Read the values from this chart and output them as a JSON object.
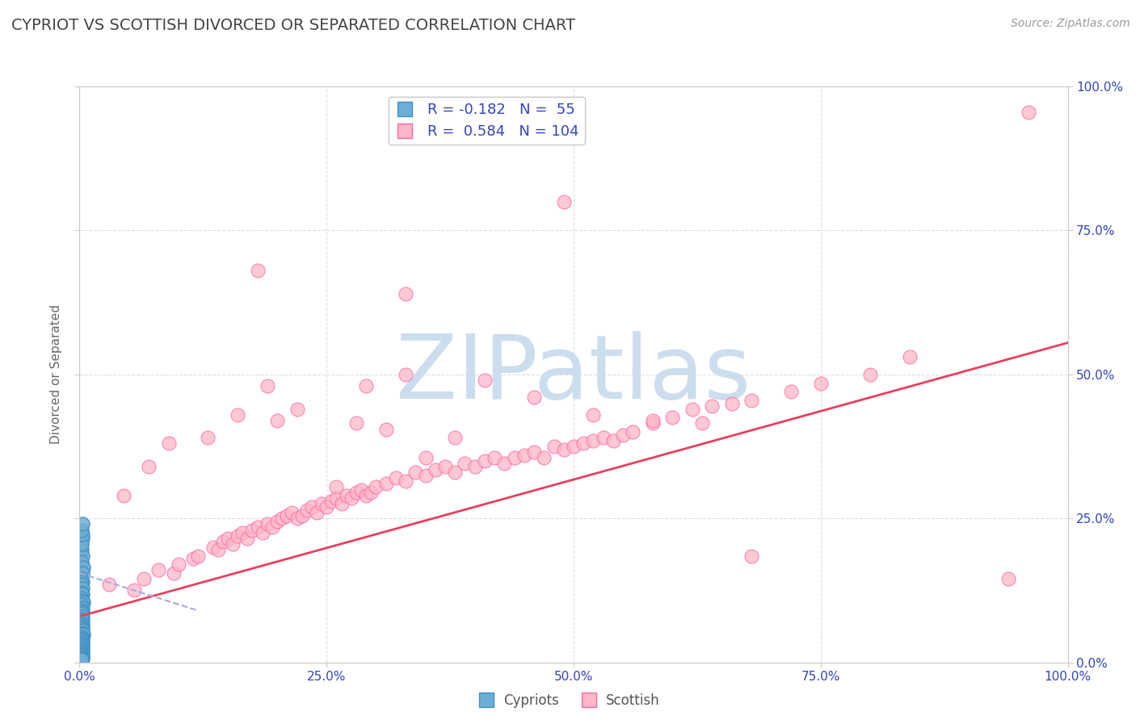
{
  "title": "CYPRIOT VS SCOTTISH DIVORCED OR SEPARATED CORRELATION CHART",
  "source_text": "Source: ZipAtlas.com",
  "ylabel": "Divorced or Separated",
  "xlim": [
    0,
    1.0
  ],
  "ylim": [
    0,
    1.0
  ],
  "xticks": [
    0.0,
    0.25,
    0.5,
    0.75,
    1.0
  ],
  "yticks": [
    0.0,
    0.25,
    0.5,
    0.75,
    1.0
  ],
  "xtick_labels": [
    "0.0%",
    "25.0%",
    "50.0%",
    "75.0%",
    "100.0%"
  ],
  "ytick_labels": [
    "0.0%",
    "25.0%",
    "50.0%",
    "75.0%",
    "100.0%"
  ],
  "legend_R1": "-0.182",
  "legend_N1": "55",
  "legend_R2": "0.584",
  "legend_N2": "104",
  "cypriot_color": "#6baed6",
  "scottish_color": "#ffb6c8",
  "cypriot_edge": "#4292c6",
  "scottish_edge": "#f768a1",
  "trend_scottish_color": "#e84060",
  "trend_cypriot_color": "#aaaadd",
  "watermark": "ZIPatlas",
  "watermark_color": "#ccdded",
  "background_color": "#ffffff",
  "grid_color": "#dddddd",
  "title_color": "#444444",
  "axis_label_color": "#666666",
  "tick_label_color": "#3344bb",
  "scottish_trend_x0": 0.0,
  "scottish_trend_y0": 0.08,
  "scottish_trend_x1": 1.0,
  "scottish_trend_y1": 0.555,
  "cypriot_trend_x0": 0.0,
  "cypriot_trend_y0": 0.155,
  "cypriot_trend_x1": 0.12,
  "cypriot_trend_y1": 0.09,
  "scottish_scatter_x": [
    0.03,
    0.055,
    0.065,
    0.08,
    0.095,
    0.1,
    0.115,
    0.12,
    0.135,
    0.14,
    0.145,
    0.15,
    0.155,
    0.16,
    0.165,
    0.17,
    0.175,
    0.18,
    0.185,
    0.19,
    0.195,
    0.2,
    0.205,
    0.21,
    0.215,
    0.22,
    0.225,
    0.23,
    0.235,
    0.24,
    0.245,
    0.25,
    0.255,
    0.26,
    0.265,
    0.27,
    0.275,
    0.28,
    0.285,
    0.29,
    0.295,
    0.3,
    0.31,
    0.32,
    0.33,
    0.34,
    0.35,
    0.36,
    0.37,
    0.38,
    0.39,
    0.4,
    0.41,
    0.42,
    0.43,
    0.44,
    0.45,
    0.46,
    0.47,
    0.48,
    0.49,
    0.5,
    0.51,
    0.52,
    0.53,
    0.54,
    0.55,
    0.56,
    0.58,
    0.6,
    0.62,
    0.64,
    0.66,
    0.68,
    0.72,
    0.75,
    0.8,
    0.84,
    0.26,
    0.35,
    0.38,
    0.2,
    0.22,
    0.28,
    0.31,
    0.16,
    0.13,
    0.09,
    0.07,
    0.045,
    0.19,
    0.29,
    0.33,
    0.41,
    0.46,
    0.52,
    0.58,
    0.63,
    0.68,
    0.96,
    0.33,
    0.18,
    0.49,
    0.94
  ],
  "scottish_scatter_y": [
    0.135,
    0.125,
    0.145,
    0.16,
    0.155,
    0.17,
    0.18,
    0.185,
    0.2,
    0.195,
    0.21,
    0.215,
    0.205,
    0.22,
    0.225,
    0.215,
    0.23,
    0.235,
    0.225,
    0.24,
    0.235,
    0.245,
    0.25,
    0.255,
    0.26,
    0.25,
    0.255,
    0.265,
    0.27,
    0.26,
    0.275,
    0.27,
    0.28,
    0.285,
    0.275,
    0.29,
    0.285,
    0.295,
    0.3,
    0.29,
    0.295,
    0.305,
    0.31,
    0.32,
    0.315,
    0.33,
    0.325,
    0.335,
    0.34,
    0.33,
    0.345,
    0.34,
    0.35,
    0.355,
    0.345,
    0.355,
    0.36,
    0.365,
    0.355,
    0.375,
    0.37,
    0.375,
    0.38,
    0.385,
    0.39,
    0.385,
    0.395,
    0.4,
    0.415,
    0.425,
    0.44,
    0.445,
    0.45,
    0.455,
    0.47,
    0.485,
    0.5,
    0.53,
    0.305,
    0.355,
    0.39,
    0.42,
    0.44,
    0.415,
    0.405,
    0.43,
    0.39,
    0.38,
    0.34,
    0.29,
    0.48,
    0.48,
    0.5,
    0.49,
    0.46,
    0.43,
    0.42,
    0.415,
    0.185,
    0.955,
    0.64,
    0.68,
    0.8,
    0.145
  ],
  "cypriot_scatter_x": [
    0.002,
    0.003,
    0.002,
    0.004,
    0.003,
    0.002,
    0.003,
    0.002,
    0.003,
    0.002,
    0.003,
    0.002,
    0.003,
    0.004,
    0.002,
    0.003,
    0.002,
    0.003,
    0.002,
    0.003,
    0.002,
    0.003,
    0.002,
    0.003,
    0.002,
    0.003,
    0.002,
    0.003,
    0.002,
    0.003,
    0.004,
    0.002,
    0.003,
    0.002,
    0.003,
    0.002,
    0.003,
    0.002,
    0.003,
    0.002,
    0.003,
    0.002,
    0.003,
    0.002,
    0.003,
    0.002,
    0.003,
    0.002,
    0.003,
    0.002,
    0.003,
    0.002,
    0.003,
    0.002,
    0.003
  ],
  "cypriot_scatter_y": [
    0.195,
    0.185,
    0.175,
    0.165,
    0.155,
    0.145,
    0.14,
    0.135,
    0.128,
    0.122,
    0.118,
    0.112,
    0.108,
    0.105,
    0.1,
    0.095,
    0.09,
    0.088,
    0.085,
    0.08,
    0.075,
    0.072,
    0.068,
    0.065,
    0.062,
    0.06,
    0.058,
    0.055,
    0.052,
    0.05,
    0.048,
    0.045,
    0.042,
    0.04,
    0.038,
    0.035,
    0.032,
    0.03,
    0.028,
    0.025,
    0.022,
    0.02,
    0.018,
    0.016,
    0.014,
    0.012,
    0.01,
    0.008,
    0.006,
    0.005,
    0.215,
    0.205,
    0.222,
    0.23,
    0.24
  ]
}
